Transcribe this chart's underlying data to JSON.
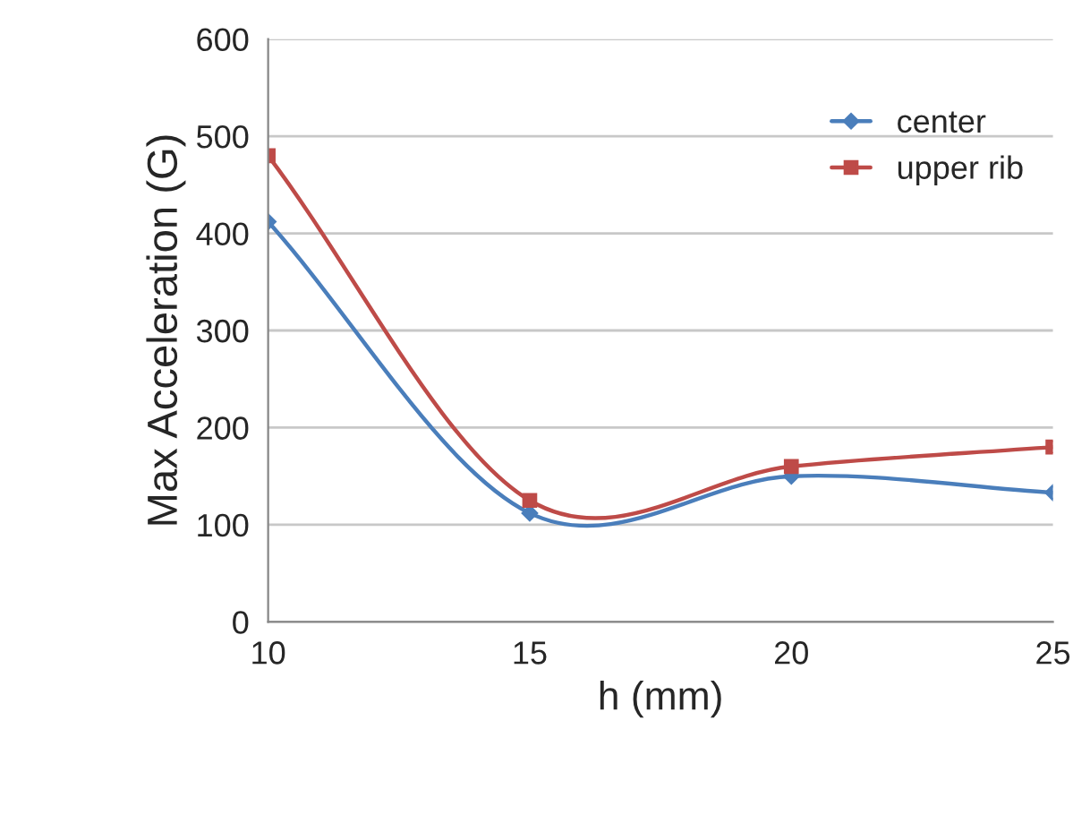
{
  "chart_data": {
    "type": "line",
    "xlabel": "h (mm)",
    "ylabel": "Max Acceleration (G)",
    "x": [
      10,
      15,
      20,
      25
    ],
    "series": [
      {
        "name": "center",
        "color": "#4a7ebb",
        "marker": "diamond",
        "values": [
          412,
          112,
          150,
          133
        ]
      },
      {
        "name": "upper rib",
        "color": "#be4b48",
        "marker": "square",
        "values": [
          480,
          125,
          160,
          180
        ]
      }
    ],
    "xlim": [
      10,
      25
    ],
    "xticks": [
      10,
      15,
      20,
      25
    ],
    "ylim": [
      0,
      600
    ],
    "yticks": [
      0,
      100,
      200,
      300,
      400,
      500,
      600
    ],
    "grid": "y",
    "legend": "top right",
    "line_style": "solid"
  }
}
